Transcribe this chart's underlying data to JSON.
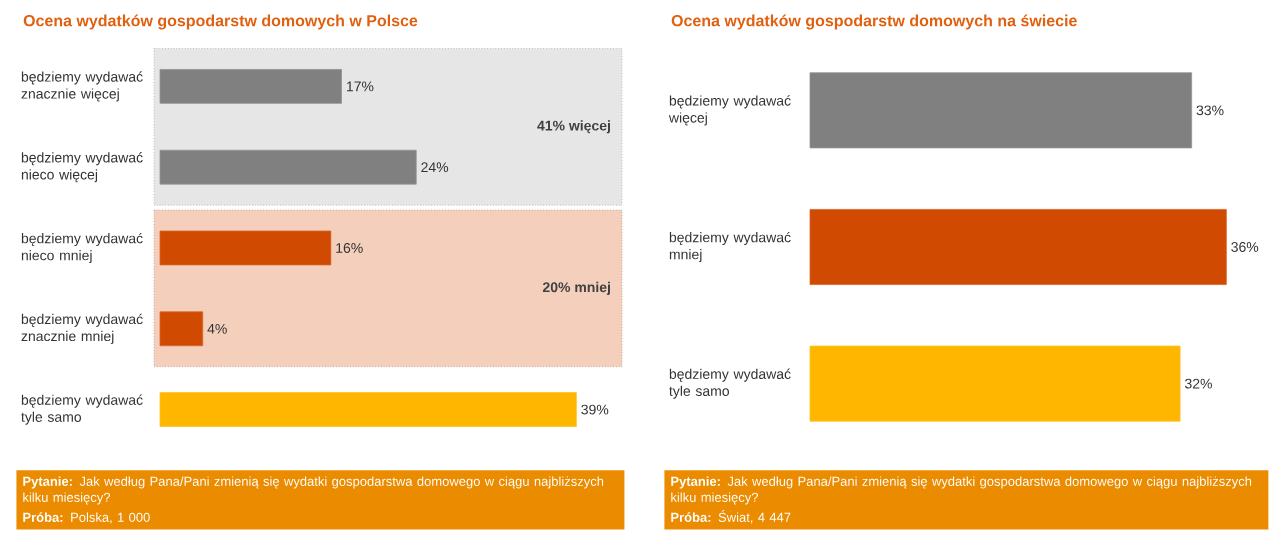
{
  "chart_data": [
    {
      "type": "bar",
      "orientation": "horizontal",
      "title": "Ocena wydatków gospodarstw domowych w Polsce",
      "categories": [
        "będziemy wydawać znacznie więcej",
        "będziemy wydawać nieco więcej",
        "będziemy wydawać nieco mniej",
        "będziemy wydawać znacznie mniej",
        "będziemy wydawać tyle samo"
      ],
      "values": [
        17,
        24,
        16,
        4,
        39
      ],
      "colors": [
        "#808080",
        "#808080",
        "#d04a02",
        "#d04a02",
        "#ffb600"
      ],
      "value_labels": [
        "17%",
        "24%",
        "16%",
        "4%",
        "39%"
      ],
      "tick_labels": "y",
      "bands": [
        {
          "axis": "y",
          "from": "będziemy wydawać znacznie więcej",
          "to": "będziemy wydawać nieco więcej",
          "label": "41% więcej",
          "color": "#e6e6e6"
        },
        {
          "axis": "y",
          "from": "będziemy wydawać nieco mniej",
          "to": "będziemy wydawać znacznie mniej",
          "label": "20% mniej",
          "color": "#f4cfbc"
        }
      ],
      "annotations": [
        "**Pytanie:** Jak według Pana/Pani zmienią się wydatki gospodarstwa domowego w ciągu najbliższych kilku miesięcy?",
        "**Próba:** Polska, 1 000"
      ]
    },
    {
      "type": "bar",
      "orientation": "horizontal",
      "title": "Ocena wydatków gospodarstw domowych na świecie",
      "categories": [
        "będziemy wydawać więcej",
        "będziemy wydawać mniej",
        "będziemy wydawać tyle samo"
      ],
      "values": [
        33,
        36,
        32
      ],
      "colors": [
        "#808080",
        "#d04a02",
        "#ffb600"
      ],
      "value_labels": [
        "33%",
        "36%",
        "32%"
      ],
      "tick_labels": "y",
      "annotations": [
        "**Pytanie:** Jak według Pana/Pani zmienią się wydatki gospodarstwa domowego w ciągu najbliższych kilku miesięcy?",
        "**Próba:** Świat, 4 447"
      ]
    }
  ]
}
